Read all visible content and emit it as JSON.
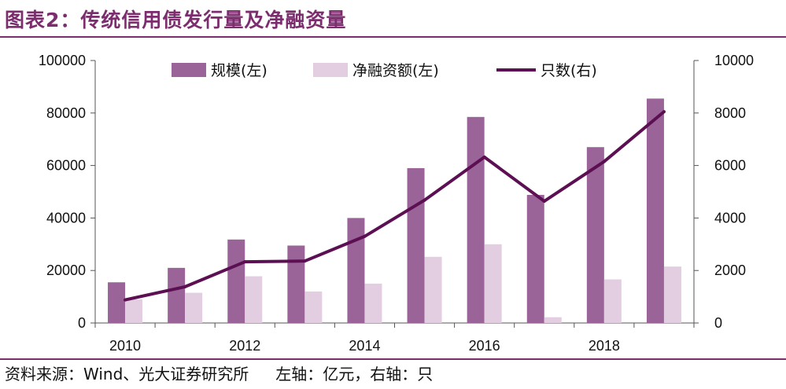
{
  "title": "图表2：传统信用债发行量及净融资量",
  "source_left": "资料来源：Wind、光大证券研究所",
  "source_right": "左轴：亿元，右轴：只",
  "chart_data": {
    "type": "bar",
    "categories": [
      "2010",
      "2011",
      "2012",
      "2013",
      "2014",
      "2015",
      "2016",
      "2017",
      "2018",
      "2019"
    ],
    "x_tick_labels": [
      "2010",
      "",
      "2012",
      "",
      "2014",
      "",
      "2016",
      "",
      "2018",
      ""
    ],
    "series": [
      {
        "name": "规模(左)",
        "type": "bar",
        "axis": "left",
        "color": "#9b6498",
        "values": [
          15500,
          21000,
          31800,
          29500,
          40000,
          59000,
          78500,
          48800,
          67000,
          85500
        ]
      },
      {
        "name": "净融资额(左)",
        "type": "bar",
        "axis": "left",
        "color": "#e3cde0",
        "values": [
          9000,
          11500,
          17800,
          12000,
          15000,
          25200,
          30000,
          2200,
          16600,
          21500
        ]
      },
      {
        "name": "只数(右)",
        "type": "line",
        "axis": "right",
        "color": "#5c0f52",
        "values": [
          880,
          1380,
          2330,
          2360,
          3300,
          4680,
          6320,
          4640,
          6150,
          8050
        ]
      }
    ],
    "y_left": {
      "min": 0,
      "max": 100000,
      "ticks": [
        "0",
        "20000",
        "40000",
        "60000",
        "80000",
        "100000"
      ]
    },
    "y_right": {
      "min": 0,
      "max": 10000,
      "ticks": [
        "0",
        "2000",
        "4000",
        "6000",
        "8000",
        "10000"
      ]
    },
    "legend_position": "top-center",
    "grid": false
  }
}
